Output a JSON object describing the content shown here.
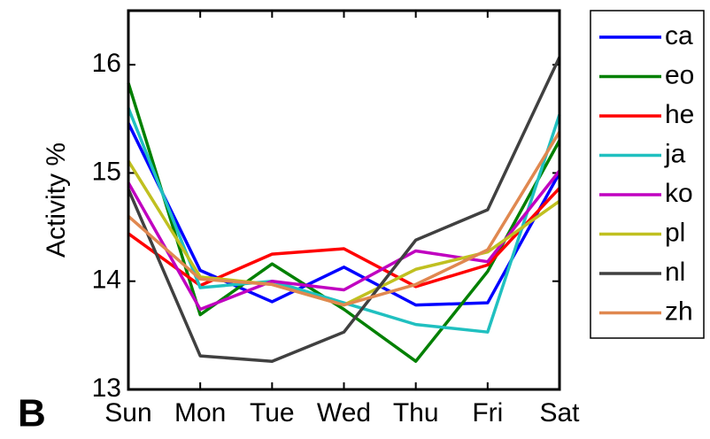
{
  "chart_data": {
    "type": "line",
    "panel_label": "B",
    "ylabel": "Activity %",
    "categories": [
      "Sun",
      "Mon",
      "Tue",
      "Wed",
      "Thu",
      "Fri",
      "Sat"
    ],
    "ylim": [
      13,
      16.5
    ],
    "yticks": [
      13,
      14,
      15,
      16
    ],
    "series": [
      {
        "name": "ca",
        "color": "#0000ff",
        "values": [
          15.46,
          14.1,
          13.81,
          14.13,
          13.78,
          13.8,
          15.0
        ]
      },
      {
        "name": "eo",
        "color": "#008000",
        "values": [
          15.83,
          13.69,
          14.16,
          13.74,
          13.26,
          14.09,
          15.3
        ]
      },
      {
        "name": "he",
        "color": "#ff0000",
        "values": [
          14.44,
          13.96,
          14.25,
          14.3,
          13.95,
          14.15,
          14.86
        ]
      },
      {
        "name": "ja",
        "color": "#20c0c0",
        "values": [
          15.6,
          13.94,
          14.0,
          13.8,
          13.6,
          13.53,
          15.54
        ]
      },
      {
        "name": "ko",
        "color": "#c000c0",
        "values": [
          14.91,
          13.74,
          14.0,
          13.92,
          14.28,
          14.18,
          15.02
        ]
      },
      {
        "name": "pl",
        "color": "#c0c020",
        "values": [
          15.11,
          14.04,
          13.97,
          13.78,
          14.11,
          14.27,
          14.74
        ]
      },
      {
        "name": "nl",
        "color": "#404040",
        "values": [
          14.85,
          13.31,
          13.26,
          13.53,
          14.38,
          14.66,
          16.07
        ]
      },
      {
        "name": "zh",
        "color": "#e08850",
        "values": [
          14.6,
          14.02,
          13.97,
          13.78,
          13.97,
          14.29,
          15.38
        ]
      }
    ]
  }
}
